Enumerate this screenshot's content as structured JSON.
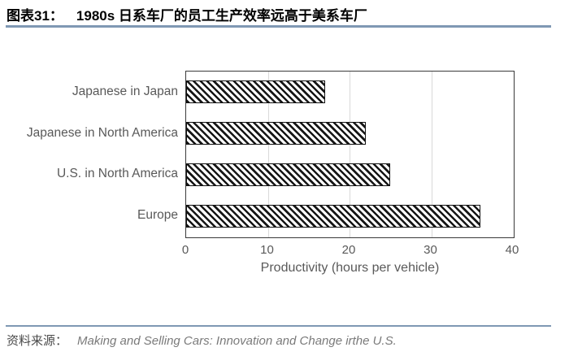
{
  "header": {
    "label": "图表31：",
    "title": "1980s 日系车厂的员工生产效率远高于美系车厂"
  },
  "chart_data": {
    "type": "bar",
    "orientation": "horizontal",
    "categories": [
      "Japanese in Japan",
      "Japanese in North America",
      "U.S. in North America",
      "Europe"
    ],
    "values": [
      17,
      22,
      25,
      36
    ],
    "xlabel": "Productivity (hours per vehicle)",
    "xlim": [
      0,
      40
    ],
    "xticks": [
      0,
      10,
      20,
      30,
      40
    ],
    "grid": "vertical-gridlines",
    "legend": "none",
    "bar_style": "black-diagonal-hatch-on-white"
  },
  "footer": {
    "source_label": "资料来源：",
    "source_text": "Making and Selling Cars: Innovation and Change irthe U.S."
  },
  "colors": {
    "accent_rule": "#7f98b3",
    "plot_border": "#3a3a3a",
    "gridline": "#d9d9d9",
    "axis_text": "#595959",
    "bar_hatch": "#161616",
    "bar_fill": "#ffffff",
    "source_text": "#7a7a7a",
    "title_text": "#000000"
  }
}
